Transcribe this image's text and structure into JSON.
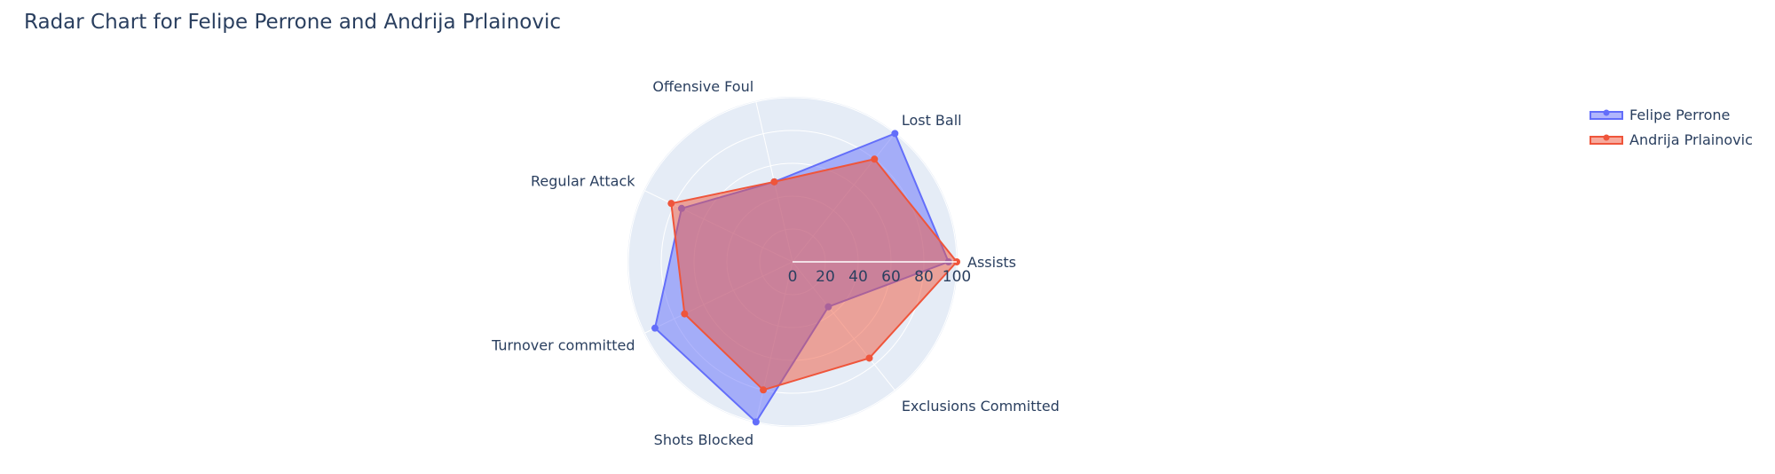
{
  "chart_data": {
    "type": "radar",
    "title": "Radar Chart for Felipe Perrone and Andrija Prlainovic",
    "categories": [
      "Assists",
      "Exclusions Committed",
      "Shots Blocked",
      "Turnover committed",
      "Regular Attack",
      "Offensive Foul",
      "Lost Ball"
    ],
    "radial_range": [
      0,
      100
    ],
    "radial_ticks": [
      "0",
      "20",
      "40",
      "60",
      "80",
      "100"
    ],
    "series": [
      {
        "name": "Felipe Perrone",
        "color": "#636efa",
        "values": [
          95,
          35,
          100,
          93,
          75,
          50,
          100
        ]
      },
      {
        "name": "Andrija Prlainovic",
        "color": "#ef553b",
        "values": [
          100,
          75,
          80,
          73,
          82,
          50,
          80
        ]
      }
    ],
    "legend_position": "top-right",
    "grid": true
  }
}
